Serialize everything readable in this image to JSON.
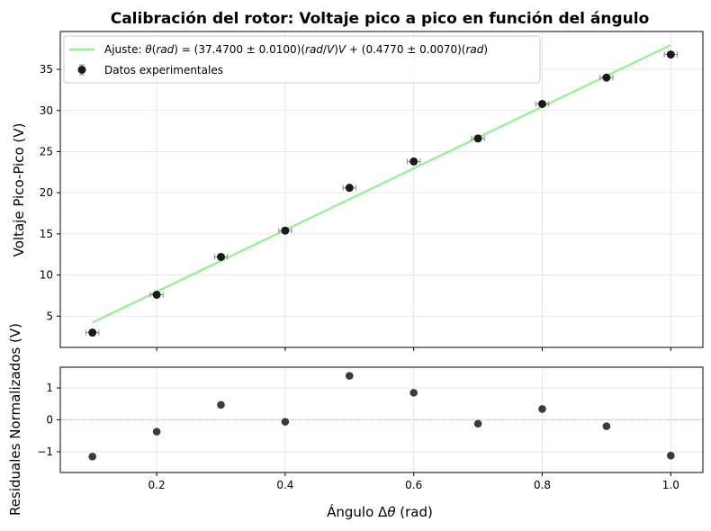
{
  "chart_data": [
    {
      "type": "scatter",
      "panel": "main",
      "title": "Calibración del rotor: Voltaje pico a pico en función del ángulo",
      "ylabel": "Voltaje Pico-Pico (V)",
      "xlim": [
        0.05,
        1.05
      ],
      "ylim": [
        1.2,
        39.6
      ],
      "x_ticks": [
        0.2,
        0.4,
        0.6,
        0.8,
        1.0
      ],
      "y_ticks": [
        5,
        10,
        15,
        20,
        25,
        30,
        35
      ],
      "y_tick_labels": [
        "5",
        "10",
        "15",
        "20",
        "25",
        "30",
        "35"
      ],
      "grid": true,
      "legend_position": "top-left",
      "series": [
        {
          "name": "Datos experimentales",
          "kind": "errorbar",
          "color": "#1a1a1a",
          "errorbar_color": "#888888",
          "x": [
            0.1,
            0.2,
            0.3,
            0.4,
            0.5,
            0.6,
            0.7,
            0.8,
            0.9,
            1.0
          ],
          "y": [
            3.0,
            7.6,
            12.2,
            15.4,
            20.6,
            23.8,
            26.6,
            30.8,
            34.0,
            36.8
          ],
          "xerr": [
            0.01,
            0.01,
            0.01,
            0.01,
            0.01,
            0.01,
            0.01,
            0.01,
            0.01,
            0.01
          ]
        },
        {
          "name": "Ajuste: θ(rad) = (37.4700 ± 0.0100)(rad/V)V + (0.4770 ± 0.0070)(rad)",
          "kind": "line",
          "color": "#90ee90",
          "slope": 37.47,
          "intercept": 0.477,
          "x_range": [
            0.1,
            1.0
          ]
        }
      ]
    },
    {
      "type": "scatter",
      "panel": "residuals",
      "xlabel": "Ángulo Δθ (rad)",
      "ylabel": "Residuales Normalizados (V)",
      "xlim": [
        0.05,
        1.05
      ],
      "ylim": [
        -1.65,
        1.65
      ],
      "x_ticks": [
        0.2,
        0.4,
        0.6,
        0.8,
        1.0
      ],
      "x_tick_labels": [
        "0.2",
        "0.4",
        "0.6",
        "0.8",
        "1.0"
      ],
      "y_ticks": [
        -1,
        0,
        1
      ],
      "y_tick_labels": [
        "−1",
        "0",
        "1"
      ],
      "grid": true,
      "zero_line_color": "#90ee90",
      "series": [
        {
          "color": "#1a1a1a",
          "x": [
            0.1,
            0.2,
            0.3,
            0.4,
            0.5,
            0.6,
            0.7,
            0.8,
            0.9,
            1.0
          ],
          "y": [
            -1.15,
            -0.37,
            0.47,
            -0.06,
            1.38,
            0.85,
            -0.12,
            0.34,
            -0.2,
            -1.12
          ]
        }
      ]
    }
  ]
}
